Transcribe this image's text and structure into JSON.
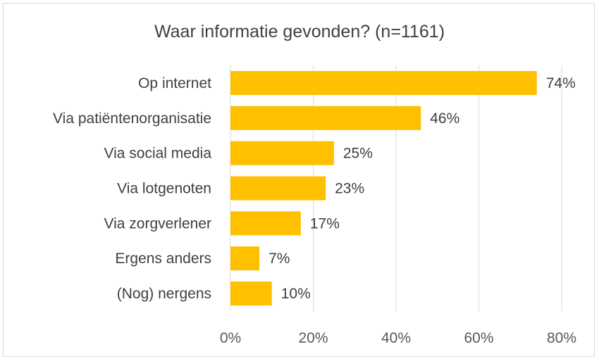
{
  "chart_data": {
    "type": "bar",
    "orientation": "horizontal",
    "title": "Waar informatie gevonden? (n=1161)",
    "categories": [
      "Op internet",
      "Via patiëntenorganisatie",
      "Via social media",
      "Via lotgenoten",
      "Via zorgverlener",
      "Ergens anders",
      "(Nog) nergens"
    ],
    "values": [
      74,
      46,
      25,
      23,
      17,
      7,
      10
    ],
    "data_labels": [
      "74%",
      "46%",
      "25%",
      "23%",
      "17%",
      "7%",
      "10%"
    ],
    "xlim": [
      0,
      80
    ],
    "x_ticks": [
      0,
      20,
      40,
      60,
      80
    ],
    "x_tick_labels": [
      "0%",
      "20%",
      "40%",
      "60%",
      "80%"
    ],
    "bar_color": "#ffc000",
    "grid": true,
    "legend": "none"
  }
}
